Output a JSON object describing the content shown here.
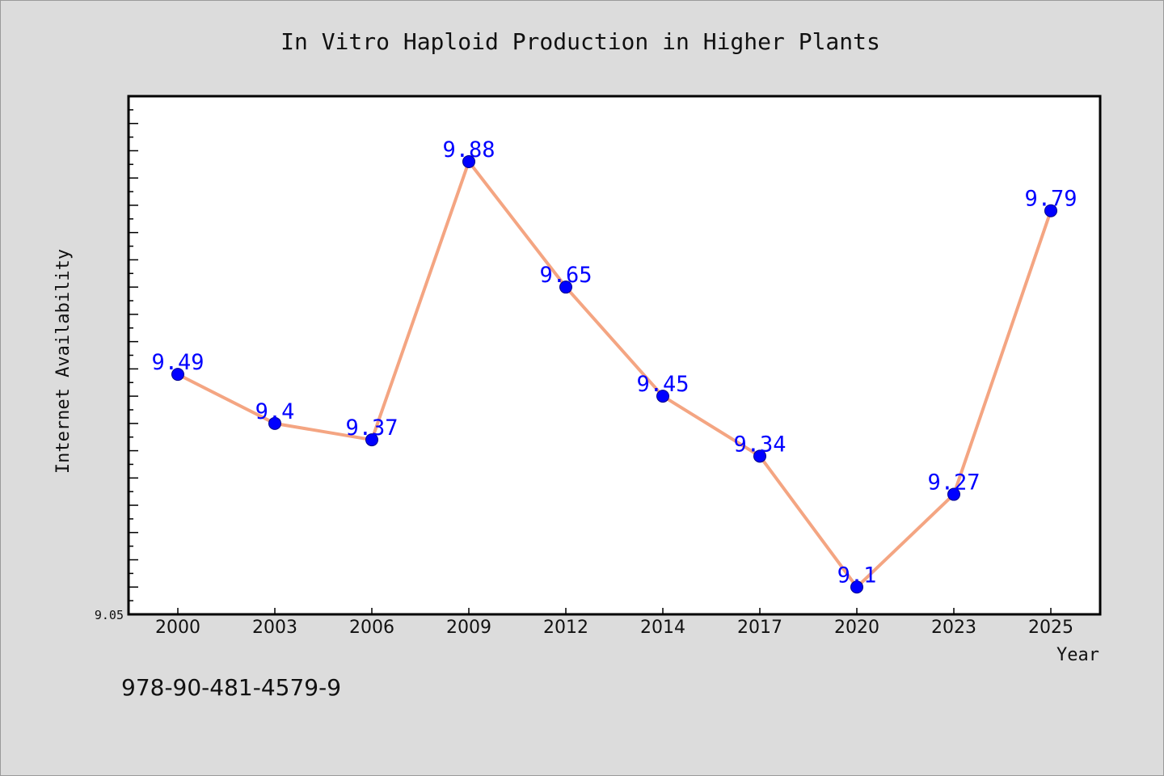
{
  "chart_data": {
    "type": "line",
    "title": "In Vitro Haploid Production in Higher Plants",
    "xlabel": "Year",
    "ylabel": "Internet Availability",
    "categories": [
      "2000",
      "2003",
      "2006",
      "2009",
      "2012",
      "2014",
      "2017",
      "2020",
      "2023",
      "2025"
    ],
    "series": [
      {
        "values": [
          9.49,
          9.4,
          9.37,
          9.88,
          9.65,
          9.45,
          9.34,
          9.1,
          9.27,
          9.79
        ],
        "labels": [
          "9.49",
          "9.4",
          "9.37",
          "9.88",
          "9.65",
          "9.45",
          "9.34",
          "9.1",
          "9.27",
          "9.79"
        ]
      }
    ],
    "ylim": [
      9.05,
      10.0
    ],
    "y_tick_labels": [
      "9.05"
    ],
    "grid": false,
    "legend": "none",
    "line_color": "#f4a582",
    "marker_color": "#0000ff",
    "label_color": "#0000ff"
  },
  "footer": {
    "isbn": "978-90-481-4579-9"
  }
}
